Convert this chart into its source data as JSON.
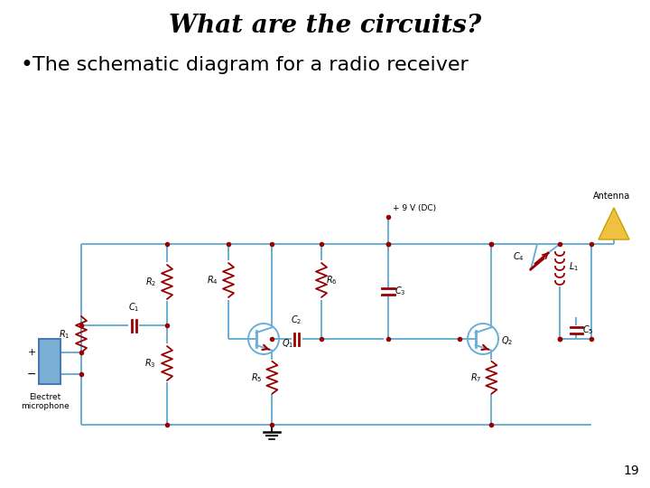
{
  "title": "What are the circuits?",
  "bullet": "The schematic diagram for a radio receiver",
  "page_number": "19",
  "bg_color": "#ffffff",
  "title_fontsize": 20,
  "bullet_fontsize": 16,
  "wire_color": "#6baed6",
  "dot_color": "#990000",
  "component_color": "#990000",
  "label_color": "#000000",
  "antenna_fill": "#f0c040",
  "mic_fill": "#7bafd4",
  "vcc_label": "+ 9 V (DC)",
  "antenna_label": "Antenna",
  "mic_label_1": "Electret",
  "mic_label_2": "microphone"
}
